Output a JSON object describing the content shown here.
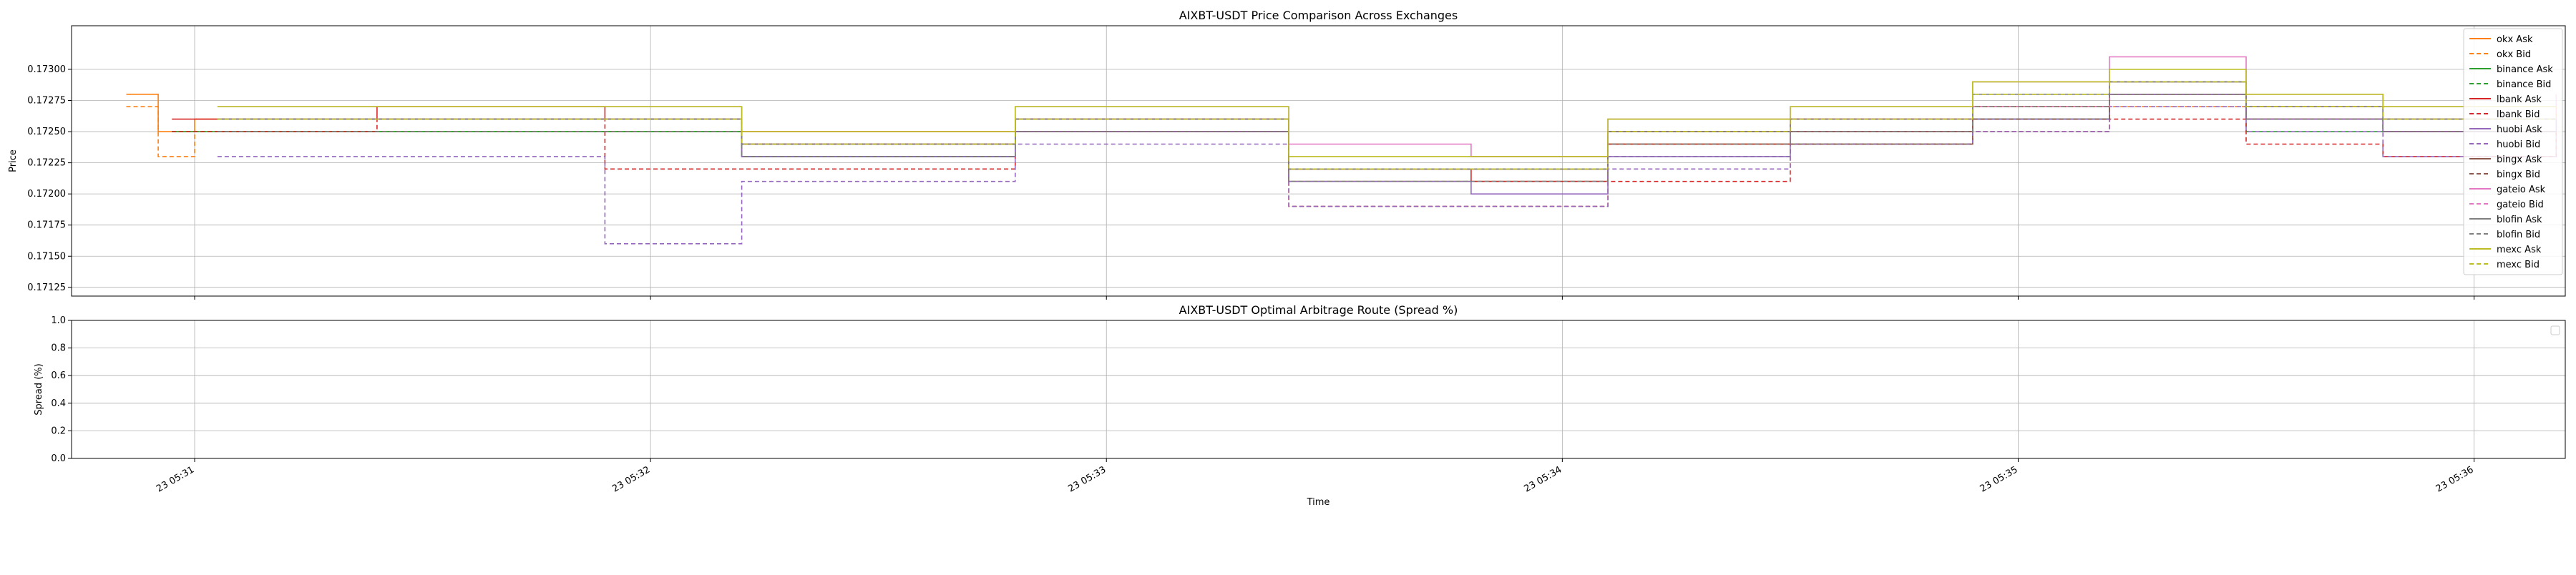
{
  "figure": {
    "xlabel": "Time",
    "x_tick_labels": [
      "23 05:31",
      "23 05:32",
      "23 05:33",
      "23 05:34",
      "23 05:35",
      "23 05:36"
    ]
  },
  "chart_data": [
    {
      "type": "line",
      "title": "AIXBT-USDT Price Comparison Across Exchanges",
      "xlabel": "Time",
      "ylabel": "Price",
      "x_ticks_minutes": [
        1,
        2,
        3,
        4,
        5,
        6
      ],
      "x_tick_labels": [
        "23 05:31",
        "23 05:32",
        "23 05:33",
        "23 05:34",
        "23 05:35",
        "23 05:36"
      ],
      "xlim_minutes": [
        0.73,
        6.2
      ],
      "ylim": [
        0.17118,
        0.17335
      ],
      "y_ticks": [
        0.17125,
        0.1715,
        0.17175,
        0.172,
        0.17225,
        0.1725,
        0.17275,
        0.173
      ],
      "y_tick_labels": [
        "0.17125",
        "0.17150",
        "0.17175",
        "0.17200",
        "0.17225",
        "0.17250",
        "0.17275",
        "0.17300"
      ],
      "grid": true,
      "legend_position": "top-right",
      "series": [
        {
          "name": "okx Ask",
          "color": "#ff7f0e",
          "dash": false,
          "x_minutes": [
            0.85,
            0.92,
            1.0,
            1.6,
            2.2,
            2.8,
            3.1,
            3.4,
            3.8,
            4.1,
            4.5,
            4.9,
            5.2,
            5.5,
            5.8,
            6.18
          ],
          "y": [
            0.1728,
            0.1725,
            0.1726,
            0.1726,
            0.1725,
            0.1726,
            0.1726,
            0.1722,
            0.1722,
            0.1725,
            0.1726,
            0.1727,
            0.1728,
            0.1727,
            0.1726,
            0.1727
          ]
        },
        {
          "name": "okx Bid",
          "color": "#ff7f0e",
          "dash": true,
          "x_minutes": [
            0.85,
            0.92,
            1.0,
            1.6,
            2.2,
            2.8,
            3.1,
            3.4,
            3.8,
            4.1,
            4.5,
            4.9,
            5.2,
            5.5,
            5.8,
            6.18
          ],
          "y": [
            0.1727,
            0.1723,
            0.1725,
            0.1725,
            0.1724,
            0.1725,
            0.1725,
            0.1721,
            0.1721,
            0.1724,
            0.1725,
            0.1726,
            0.1727,
            0.1726,
            0.1725,
            0.1726
          ]
        },
        {
          "name": "binance Ask",
          "color": "#2ca02c",
          "dash": false,
          "x_minutes": [
            0.95,
            1.6,
            2.2,
            2.8,
            3.1,
            3.4,
            3.8,
            4.1,
            4.5,
            4.9,
            5.2,
            5.5,
            5.8,
            6.18
          ],
          "y": [
            0.1725,
            0.1725,
            0.1723,
            0.1725,
            0.1725,
            0.1722,
            0.1722,
            0.1724,
            0.1724,
            0.1726,
            0.1728,
            0.1726,
            0.1725,
            0.1725
          ]
        },
        {
          "name": "binance Bid",
          "color": "#2ca02c",
          "dash": true,
          "x_minutes": [
            0.95,
            1.6,
            2.2,
            2.8,
            3.1,
            3.4,
            3.8,
            4.1,
            4.5,
            4.9,
            5.2,
            5.5,
            5.8,
            6.18
          ],
          "y": [
            0.1725,
            0.1725,
            0.1723,
            0.1725,
            0.1725,
            0.1721,
            0.1721,
            0.1723,
            0.1724,
            0.1726,
            0.1728,
            0.1725,
            0.1725,
            0.1725
          ]
        },
        {
          "name": "lbank Ask",
          "color": "#d62728",
          "dash": false,
          "x_minutes": [
            0.95,
            1.4,
            1.9,
            2.2,
            2.8,
            3.1,
            3.4,
            3.8,
            4.1,
            4.5,
            4.9,
            5.2,
            5.5,
            5.8,
            6.18
          ],
          "y": [
            0.1726,
            0.1727,
            0.1726,
            0.1724,
            0.1726,
            0.1726,
            0.1722,
            0.1721,
            0.1724,
            0.1726,
            0.1727,
            0.1728,
            0.1726,
            0.1725,
            0.1726
          ]
        },
        {
          "name": "lbank Bid",
          "color": "#d62728",
          "dash": true,
          "x_minutes": [
            0.95,
            1.4,
            1.9,
            2.2,
            2.8,
            3.1,
            3.4,
            3.8,
            4.1,
            4.5,
            4.9,
            5.2,
            5.5,
            5.8,
            6.18
          ],
          "y": [
            0.1725,
            0.1726,
            0.1722,
            0.1722,
            0.1725,
            0.1725,
            0.1719,
            0.1719,
            0.1721,
            0.1724,
            0.1725,
            0.1726,
            0.1724,
            0.1723,
            0.1725
          ]
        },
        {
          "name": "huobi Ask",
          "color": "#9467bd",
          "dash": false,
          "x_minutes": [
            1.05,
            1.6,
            2.2,
            2.8,
            3.1,
            3.4,
            3.8,
            4.1,
            4.5,
            4.9,
            5.2,
            5.5,
            5.8,
            6.18
          ],
          "y": [
            0.1726,
            0.1726,
            0.1723,
            0.1725,
            0.1725,
            0.1721,
            0.172,
            0.1723,
            0.1725,
            0.1726,
            0.1728,
            0.1726,
            0.1725,
            0.1726
          ]
        },
        {
          "name": "huobi Bid",
          "color": "#9467bd",
          "dash": true,
          "x_minutes": [
            1.05,
            1.6,
            1.9,
            2.2,
            2.8,
            3.1,
            3.4,
            3.8,
            4.1,
            4.5,
            4.9,
            5.2,
            5.5,
            5.8,
            6.18
          ],
          "y": [
            0.1723,
            0.1723,
            0.1716,
            0.1721,
            0.1724,
            0.1724,
            0.1719,
            0.1719,
            0.1722,
            0.1724,
            0.1725,
            0.1727,
            0.1725,
            0.1723,
            0.1725
          ]
        },
        {
          "name": "bingx Ask",
          "color": "#8c564b",
          "dash": false,
          "x_minutes": [
            1.05,
            1.6,
            2.2,
            2.8,
            3.1,
            3.4,
            3.8,
            4.1,
            4.5,
            4.9,
            5.2,
            5.5,
            5.8,
            6.18
          ],
          "y": [
            0.1726,
            0.1726,
            0.1724,
            0.1726,
            0.1726,
            0.1722,
            0.1722,
            0.1725,
            0.1725,
            0.1727,
            0.1729,
            0.1727,
            0.1726,
            0.1726
          ]
        },
        {
          "name": "bingx Bid",
          "color": "#8c564b",
          "dash": true,
          "x_minutes": [
            1.05,
            1.6,
            2.2,
            2.8,
            3.1,
            3.4,
            3.8,
            4.1,
            4.5,
            4.9,
            5.2,
            5.5,
            5.8,
            6.18
          ],
          "y": [
            0.1725,
            0.1725,
            0.1723,
            0.1725,
            0.1725,
            0.1721,
            0.1721,
            0.1724,
            0.1724,
            0.1726,
            0.1728,
            0.1726,
            0.1725,
            0.1725
          ]
        },
        {
          "name": "gateio Ask",
          "color": "#e377c2",
          "dash": false,
          "x_minutes": [
            1.05,
            1.6,
            2.2,
            2.8,
            3.1,
            3.4,
            3.8,
            4.1,
            4.5,
            4.9,
            5.2,
            5.5,
            5.8,
            6.18
          ],
          "y": [
            0.1727,
            0.1727,
            0.1725,
            0.1727,
            0.1727,
            0.1724,
            0.1723,
            0.1726,
            0.1727,
            0.1729,
            0.1731,
            0.1728,
            0.1727,
            0.1728
          ]
        },
        {
          "name": "gateio Bid",
          "color": "#e377c2",
          "dash": true,
          "x_minutes": [
            1.05,
            1.6,
            2.2,
            2.8,
            3.1,
            3.4,
            3.8,
            4.1,
            4.5,
            4.9,
            5.2,
            5.5,
            5.8,
            6.18
          ],
          "y": [
            0.1726,
            0.1726,
            0.1724,
            0.1726,
            0.1726,
            0.1722,
            0.1722,
            0.1725,
            0.1726,
            0.1727,
            0.1729,
            0.1727,
            0.1726,
            0.1727
          ]
        },
        {
          "name": "blofin Ask",
          "color": "#7f7f7f",
          "dash": false,
          "x_minutes": [
            1.05,
            1.6,
            2.2,
            2.8,
            3.1,
            3.4,
            3.8,
            4.1,
            4.5,
            4.9,
            5.2,
            5.5,
            5.8,
            6.18
          ],
          "y": [
            0.1726,
            0.1726,
            0.1724,
            0.1726,
            0.1726,
            0.1722,
            0.1722,
            0.1725,
            0.1726,
            0.1728,
            0.1729,
            0.1727,
            0.1726,
            0.1726
          ]
        },
        {
          "name": "blofin Bid",
          "color": "#7f7f7f",
          "dash": true,
          "x_minutes": [
            1.05,
            1.6,
            2.2,
            2.8,
            3.1,
            3.4,
            3.8,
            4.1,
            4.5,
            4.9,
            5.2,
            5.5,
            5.8,
            6.18
          ],
          "y": [
            0.1725,
            0.1725,
            0.1723,
            0.1725,
            0.1725,
            0.1721,
            0.1721,
            0.1724,
            0.1725,
            0.1727,
            0.1728,
            0.1726,
            0.1725,
            0.1725
          ]
        },
        {
          "name": "mexc Ask",
          "color": "#bcbd22",
          "dash": false,
          "x_minutes": [
            1.05,
            1.6,
            2.2,
            2.8,
            3.1,
            3.4,
            3.8,
            4.1,
            4.5,
            4.9,
            5.2,
            5.5,
            5.8,
            6.18
          ],
          "y": [
            0.1727,
            0.1727,
            0.1725,
            0.1727,
            0.1727,
            0.1723,
            0.1723,
            0.1726,
            0.1727,
            0.1729,
            0.173,
            0.1728,
            0.1727,
            0.1727
          ]
        },
        {
          "name": "mexc Bid",
          "color": "#bcbd22",
          "dash": true,
          "x_minutes": [
            1.05,
            1.6,
            2.2,
            2.8,
            3.1,
            3.4,
            3.8,
            4.1,
            4.5,
            4.9,
            5.2,
            5.5,
            5.8,
            6.18
          ],
          "y": [
            0.1726,
            0.1726,
            0.1724,
            0.1726,
            0.1726,
            0.1722,
            0.1722,
            0.1725,
            0.1726,
            0.1728,
            0.1729,
            0.1727,
            0.1726,
            0.1726
          ]
        }
      ]
    },
    {
      "type": "line",
      "title": "AIXBT-USDT Optimal Arbitrage Route (Spread %)",
      "xlabel": "Time",
      "ylabel": "Spread (%)",
      "x_ticks_minutes": [
        1,
        2,
        3,
        4,
        5,
        6
      ],
      "x_tick_labels": [
        "23 05:31",
        "23 05:32",
        "23 05:33",
        "23 05:34",
        "23 05:35",
        "23 05:36"
      ],
      "ylim": [
        0.0,
        1.0
      ],
      "y_ticks": [
        0.0,
        0.2,
        0.4,
        0.6,
        0.8,
        1.0
      ],
      "y_tick_labels": [
        "0.0",
        "0.2",
        "0.4",
        "0.6",
        "0.8",
        "1.0"
      ],
      "grid": true,
      "series": []
    }
  ]
}
